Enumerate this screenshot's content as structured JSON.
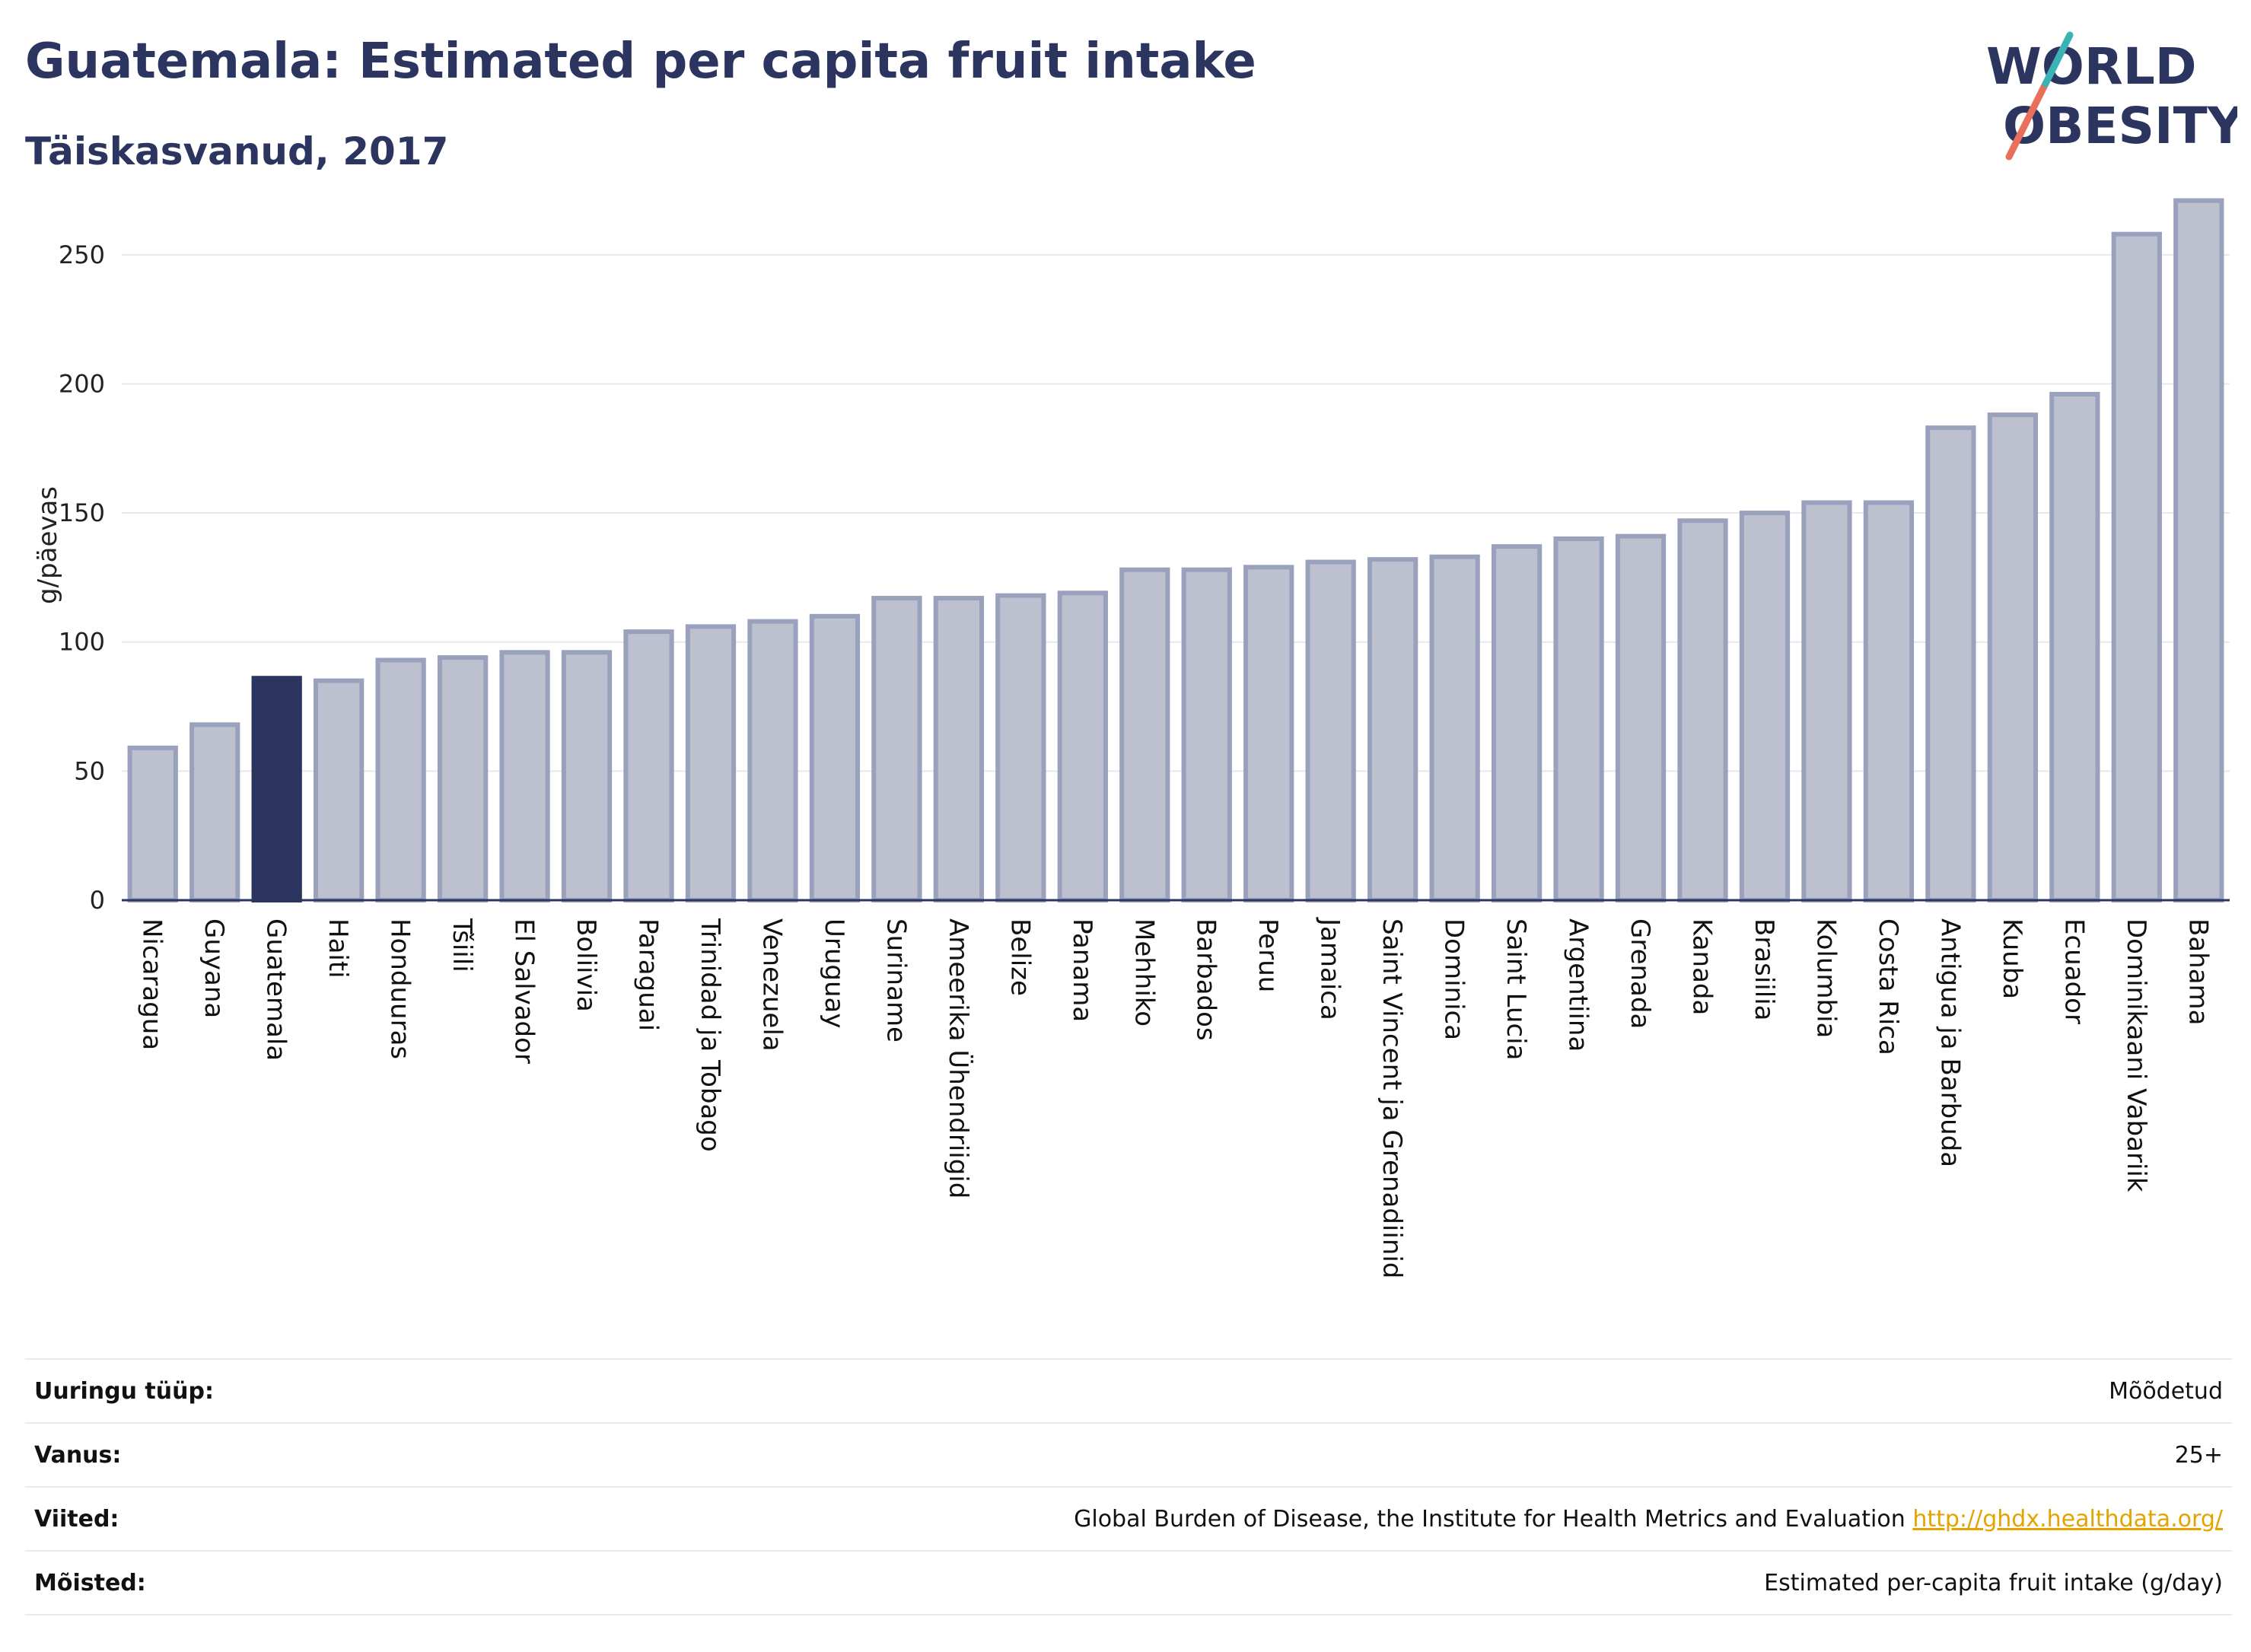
{
  "header": {
    "title": "Guatemala: Estimated per capita fruit intake",
    "subtitle": "Täiskasvanud, 2017"
  },
  "logo": {
    "line1": "WORLD",
    "line2": "OBESITY"
  },
  "colors": {
    "bar": "#bcc0cf",
    "bar_stroke": "#9aa1bd",
    "highlight": "#2b3560",
    "text": "#2b3560"
  },
  "chart_data": {
    "type": "bar",
    "title": "Guatemala: Estimated per capita fruit intake",
    "subtitle": "Täiskasvanud, 2017",
    "ylabel": "g/päevas",
    "xlabel": "",
    "ylim": [
      0,
      275
    ],
    "yticks": [
      0,
      50,
      100,
      150,
      200,
      250
    ],
    "grid": true,
    "highlight": "Guatemala",
    "categories": [
      "Nicaragua",
      "Guyana",
      "Guatemala",
      "Haiti",
      "Honduuras",
      "Tšiili",
      "El Salvador",
      "Boliivia",
      "Paraguai",
      "Trinidad ja Tobago",
      "Venezuela",
      "Uruguay",
      "Suriname",
      "Ameerika Ühendriigid",
      "Belize",
      "Panama",
      "Mehhiko",
      "Barbados",
      "Peruu",
      "Jamaica",
      "Saint Vincent ja Grenadiinid",
      "Dominica",
      "Saint Lucia",
      "Argentiina",
      "Grenada",
      "Kanada",
      "Brasiilia",
      "Kolumbia",
      "Costa Rica",
      "Antigua ja Barbuda",
      "Kuuba",
      "Ecuador",
      "Dominikaani Vabariik",
      "Bahama"
    ],
    "values": [
      59,
      68,
      86,
      85,
      93,
      94,
      96,
      96,
      104,
      106,
      108,
      110,
      117,
      117,
      118,
      119,
      128,
      128,
      129,
      131,
      132,
      133,
      137,
      140,
      141,
      147,
      150,
      154,
      154,
      183,
      188,
      196,
      258,
      271
    ]
  },
  "meta": [
    {
      "label": "Uuringu tüüp:",
      "value": "Mõõdetud"
    },
    {
      "label": "Vanus:",
      "value": "25+"
    },
    {
      "label": "Viited:",
      "value": "Global Burden of Disease, the Institute for Health Metrics and Evaluation",
      "link": "http://ghdx.healthdata.org/"
    },
    {
      "label": "Mõisted:",
      "value": "Estimated per-capita fruit intake (g/day)"
    }
  ]
}
